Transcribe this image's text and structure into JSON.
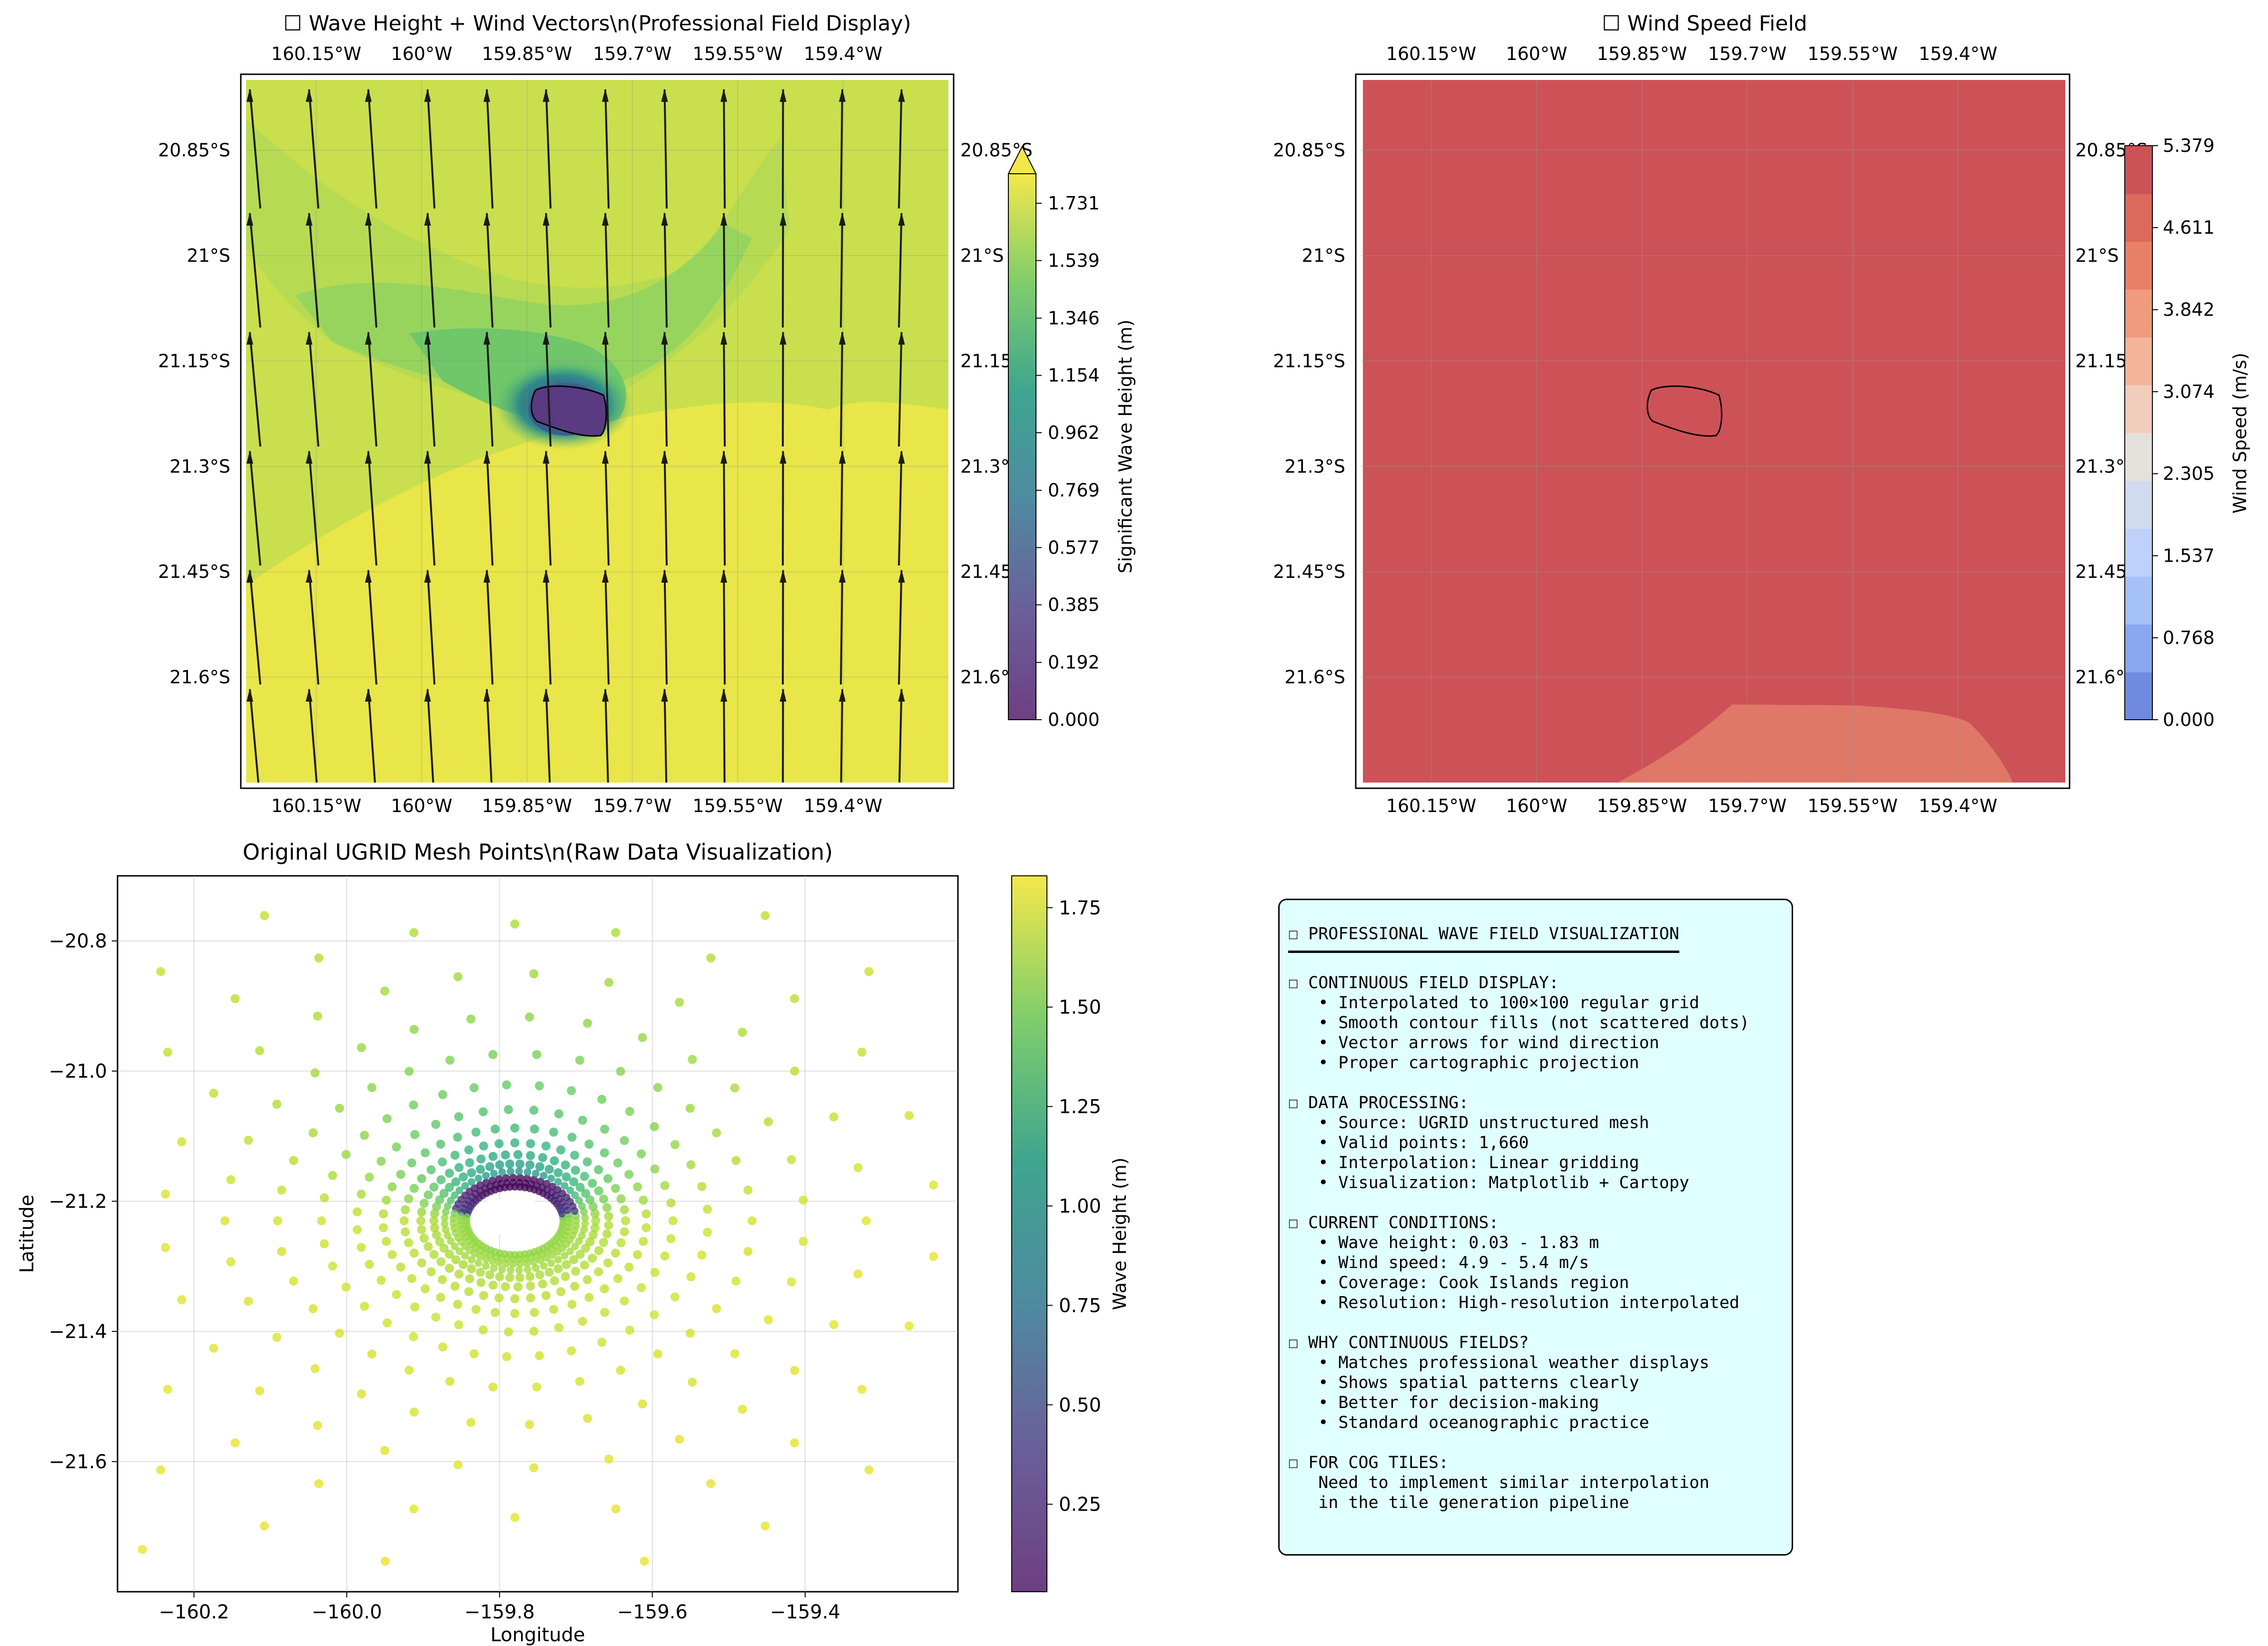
{
  "chart_data": [
    {
      "type": "heatmap",
      "title": "☐ Wave Height + Wind Vectors\\n(Professional Field Display)",
      "top_tick_labels": [
        "160.15°W",
        "160°W",
        "159.85°W",
        "159.7°W",
        "159.55°W",
        "159.4°W"
      ],
      "bottom_tick_labels": [
        "160.15°W",
        "160°W",
        "159.85°W",
        "159.7°W",
        "159.55°W",
        "159.4°W"
      ],
      "left_tick_labels": [
        "20.85°S",
        "21°S",
        "21.15°S",
        "21.3°S",
        "21.45°S",
        "21.6°S"
      ],
      "right_tick_labels": [
        "20.85°S",
        "21°S",
        "21.15°S",
        "21.3°S",
        "21.45°S",
        "21.6°S"
      ],
      "xlim": [
        -160.25,
        -159.25
      ],
      "ylim": [
        -21.75,
        -20.75
      ],
      "colormap": "viridis",
      "colorbar": {
        "label": "Significant Wave Height (m)",
        "ticks": [
          "0.000",
          "0.192",
          "0.385",
          "0.577",
          "0.769",
          "0.962",
          "1.154",
          "1.346",
          "1.539",
          "1.731"
        ],
        "tick_values": [
          0.0,
          0.192,
          0.385,
          0.577,
          0.769,
          0.962,
          1.154,
          1.346,
          1.539,
          1.731
        ],
        "range": [
          0.0,
          1.83
        ],
        "extend": "max"
      },
      "wind_vectors": {
        "direction": "north",
        "color": "#1a1a1a",
        "speed_range": [
          4.9,
          5.4
        ]
      },
      "grid": true,
      "colors": {
        "open_sea": "#e8e648",
        "shadow": "#3a5b8c",
        "island": "#5a3a80"
      }
    },
    {
      "type": "heatmap",
      "title": "☐ Wind Speed Field",
      "top_tick_labels": [
        "160.15°W",
        "160°W",
        "159.85°W",
        "159.7°W",
        "159.55°W",
        "159.4°W"
      ],
      "bottom_tick_labels": [
        "160.15°W",
        "160°W",
        "159.85°W",
        "159.7°W",
        "159.55°W",
        "159.4°W"
      ],
      "left_tick_labels": [
        "20.85°S",
        "21°S",
        "21.15°S",
        "21.3°S",
        "21.45°S",
        "21.6°S"
      ],
      "right_tick_labels": [
        "20.85°S",
        "21°S",
        "21.15°S",
        "21.3°S",
        "21.45°S",
        "21.6°S"
      ],
      "xlim": [
        -160.25,
        -159.25
      ],
      "ylim": [
        -21.75,
        -20.75
      ],
      "colormap": "coolwarm",
      "colorbar": {
        "label": "Wind Speed (m/s)",
        "ticks": [
          "0.000",
          "0.768",
          "1.537",
          "2.305",
          "3.074",
          "3.842",
          "4.611",
          "5.379"
        ],
        "tick_values": [
          0.0,
          0.768,
          1.537,
          2.305,
          3.074,
          3.842,
          4.611,
          5.379
        ],
        "range": [
          0.0,
          5.379
        ],
        "levels": 14
      },
      "field_values": {
        "main": 5.3,
        "southern_patch": 5.0
      },
      "grid": true,
      "colors": {
        "main": "#cd5257",
        "southern_patch": "#e07868"
      }
    },
    {
      "type": "scatter",
      "title": "Original UGRID Mesh Points\\n(Raw Data Visualization)",
      "xlabel": "Longitude",
      "ylabel": "Latitude",
      "xlim": [
        -160.3,
        -159.2
      ],
      "ylim": [
        -21.8,
        -20.7
      ],
      "x_ticks": [
        -160.2,
        -160.0,
        -159.8,
        -159.6,
        -159.4
      ],
      "x_tick_labels": [
        "−160.2",
        "−160.0",
        "−159.8",
        "−159.6",
        "−159.4"
      ],
      "y_ticks": [
        -20.8,
        -21.0,
        -21.2,
        -21.4,
        -21.6
      ],
      "y_tick_labels": [
        "−20.8",
        "−21.0",
        "−21.2",
        "−21.4",
        "−21.6"
      ],
      "grid": true,
      "colormap": "viridis",
      "colorbar": {
        "label": "Wave Height (m)",
        "ticks": [
          "0.25",
          "0.50",
          "0.75",
          "1.00",
          "1.25",
          "1.50",
          "1.75"
        ],
        "tick_values": [
          0.25,
          0.5,
          0.75,
          1.0,
          1.25,
          1.5,
          1.75
        ],
        "range": [
          0.03,
          1.83
        ]
      },
      "point_count": 1660,
      "island_center": {
        "lon": -159.78,
        "lat": -21.23
      }
    }
  ],
  "info_box": {
    "title": "☐ PROFESSIONAL WAVE FIELD VISUALIZATION",
    "lines": [
      "",
      "☐ CONTINUOUS FIELD DISPLAY:",
      "   • Interpolated to 100×100 regular grid",
      "   • Smooth contour fills (not scattered dots)",
      "   • Vector arrows for wind direction",
      "   • Proper cartographic projection",
      "",
      "☐ DATA PROCESSING:",
      "   • Source: UGRID unstructured mesh",
      "   • Valid points: 1,660",
      "   • Interpolation: Linear gridding",
      "   • Visualization: Matplotlib + Cartopy",
      "",
      "☐ CURRENT CONDITIONS:",
      "   • Wave height: 0.03 - 1.83 m",
      "   • Wind speed: 4.9 - 5.4 m/s",
      "   • Coverage: Cook Islands region",
      "   • Resolution: High-resolution interpolated",
      "",
      "☐ WHY CONTINUOUS FIELDS?",
      "   • Matches professional weather displays",
      "   • Shows spatial patterns clearly",
      "   • Better for decision-making",
      "   • Standard oceanographic practice",
      "",
      "☐ FOR COG TILES:",
      "   Need to implement similar interpolation",
      "   in the tile generation pipeline"
    ]
  }
}
